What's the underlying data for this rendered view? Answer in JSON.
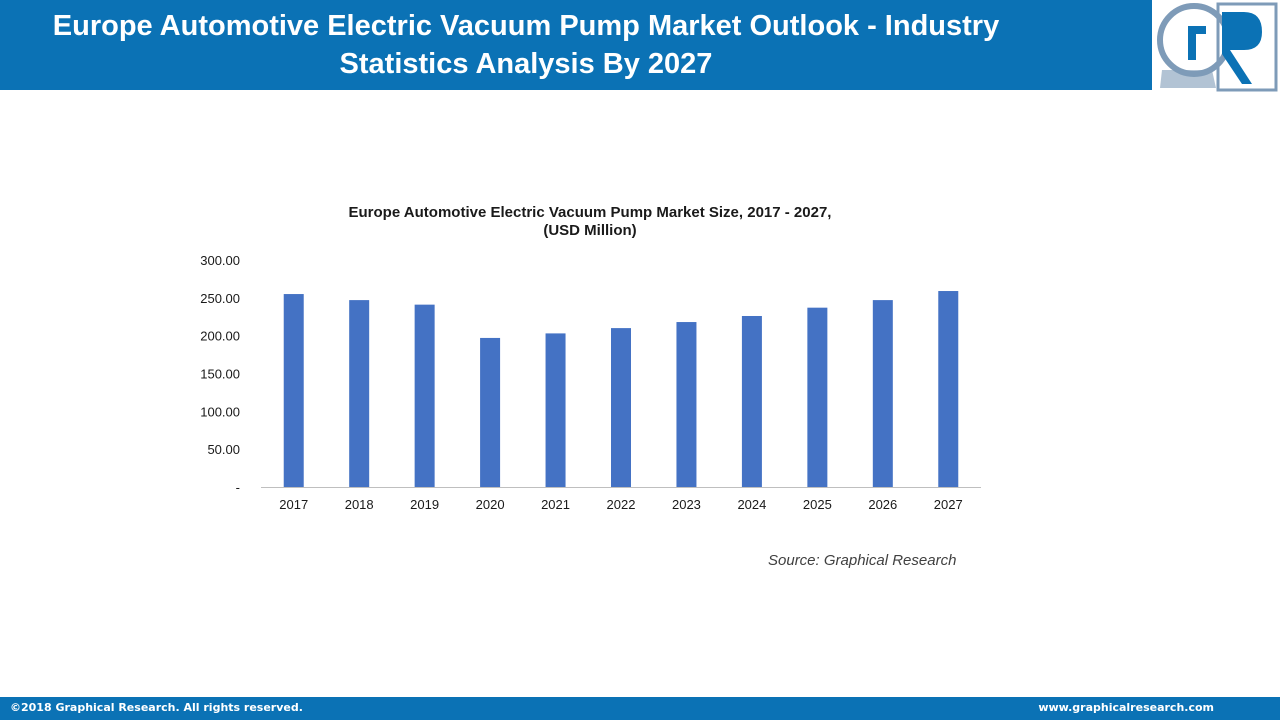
{
  "header": {
    "title": "Europe Automotive Electric Vacuum Pump Market Outlook - Industry Statistics Analysis By 2027"
  },
  "logo": {
    "icon": "graphical-research-logo",
    "text": "GR"
  },
  "colors": {
    "brand": "#0B72B5",
    "bar": "#4472C4"
  },
  "chart_data": {
    "type": "bar",
    "title_line1": "Europe Automotive Electric Vacuum Pump Market Size, 2017 - 2027,",
    "title_line2": "(USD Million)",
    "categories": [
      "2017",
      "2018",
      "2019",
      "2020",
      "2021",
      "2022",
      "2023",
      "2024",
      "2025",
      "2026",
      "2027"
    ],
    "values": [
      255,
      247,
      241,
      197,
      203,
      210,
      218,
      226,
      237,
      247,
      259
    ],
    "ylim": [
      0,
      300
    ],
    "yticks": [
      "-",
      "50.00",
      "100.00",
      "150.00",
      "200.00",
      "250.00",
      "300.00"
    ],
    "grid": false,
    "legend": "none"
  },
  "source": "Source: Graphical Research",
  "footer": {
    "copyright": "©2018 Graphical Research. All rights reserved.",
    "url": "www.graphicalresearch.com"
  }
}
